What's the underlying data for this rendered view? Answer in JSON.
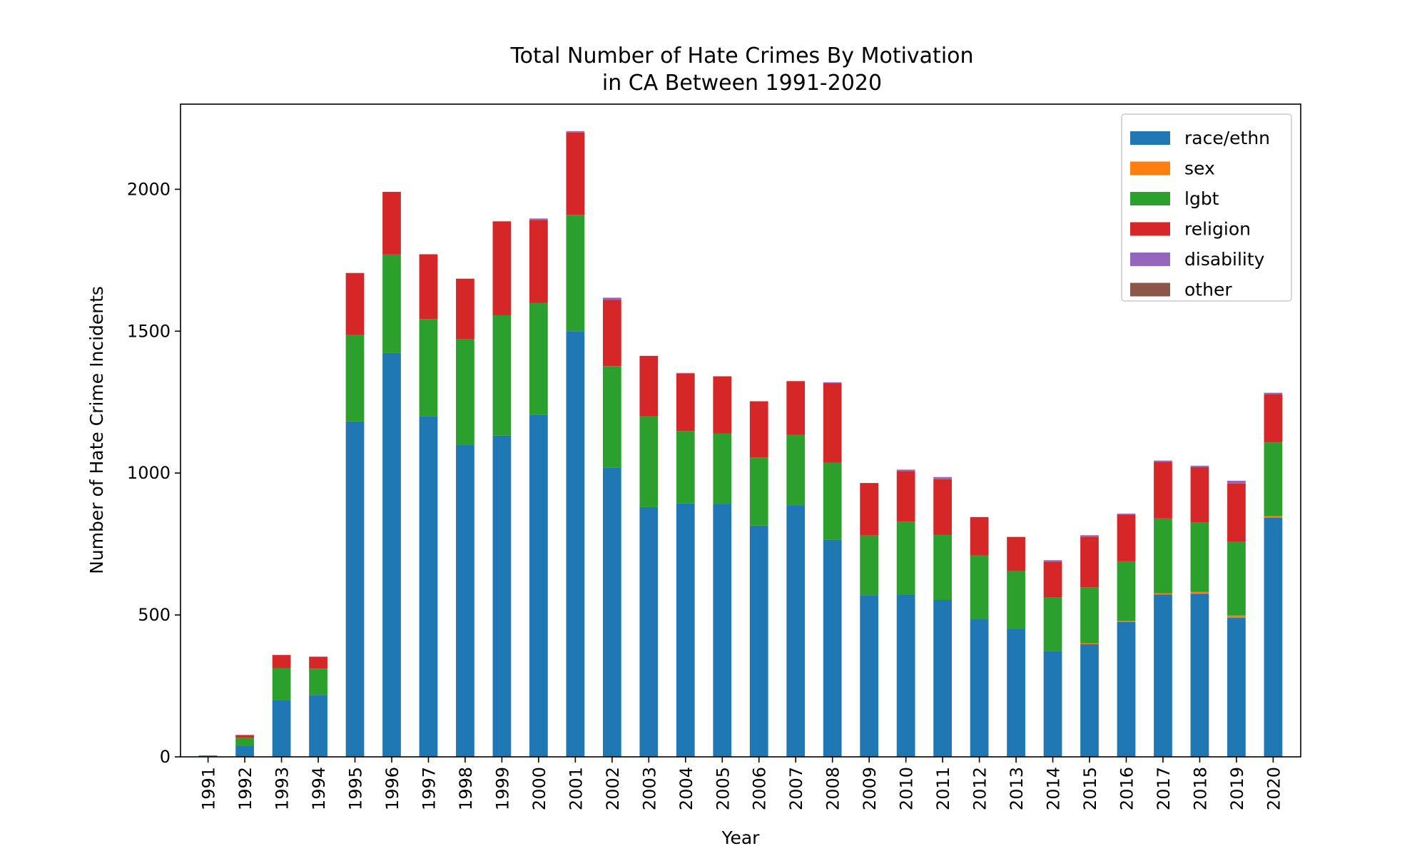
{
  "chart_data": {
    "type": "bar",
    "stacked": true,
    "title": "Total Number of Hate Crimes By Motivation\nin CA Between 1991-2020",
    "title_lines": [
      "Total Number of Hate Crimes By Motivation",
      "in CA Between 1991-2020"
    ],
    "xlabel": "Year",
    "ylabel": "Number of Hate Crime Incidents",
    "ylim": [
      0,
      2300
    ],
    "yticks": [
      0,
      500,
      1000,
      1500,
      2000
    ],
    "grid": false,
    "legend_position": "top-right",
    "categories": [
      "1991",
      "1992",
      "1993",
      "1994",
      "1995",
      "1996",
      "1997",
      "1998",
      "1999",
      "2000",
      "2001",
      "2002",
      "2003",
      "2004",
      "2005",
      "2006",
      "2007",
      "2008",
      "2009",
      "2010",
      "2011",
      "2012",
      "2013",
      "2014",
      "2015",
      "2016",
      "2017",
      "2018",
      "2019",
      "2020"
    ],
    "series": [
      {
        "name": "race/ethn",
        "color": "#1f77b4",
        "values": [
          2,
          40,
          200,
          218,
          1182,
          1423,
          1200,
          1100,
          1132,
          1205,
          1500,
          1020,
          880,
          893,
          892,
          815,
          887,
          765,
          570,
          572,
          553,
          485,
          450,
          373,
          397,
          475,
          572,
          575,
          490,
          843
        ]
      },
      {
        "name": "sex",
        "color": "#ff7f0e",
        "values": [
          0,
          0,
          0,
          0,
          0,
          0,
          0,
          0,
          0,
          0,
          0,
          0,
          0,
          0,
          0,
          0,
          0,
          0,
          0,
          0,
          0,
          0,
          0,
          0,
          3,
          4,
          4,
          6,
          8,
          5
        ]
      },
      {
        "name": "lgbt",
        "color": "#2ca02c",
        "values": [
          1,
          27,
          113,
          93,
          305,
          347,
          343,
          372,
          424,
          395,
          410,
          357,
          320,
          255,
          247,
          240,
          247,
          272,
          210,
          257,
          230,
          225,
          205,
          190,
          198,
          210,
          264,
          245,
          260,
          260
        ]
      },
      {
        "name": "religion",
        "color": "#d62728",
        "values": [
          2,
          10,
          46,
          42,
          218,
          221,
          228,
          213,
          331,
          292,
          290,
          233,
          213,
          202,
          202,
          198,
          190,
          280,
          185,
          178,
          195,
          135,
          120,
          125,
          178,
          165,
          200,
          195,
          205,
          170
        ]
      },
      {
        "name": "disability",
        "color": "#9467bd",
        "values": [
          0,
          0,
          0,
          0,
          0,
          0,
          0,
          0,
          0,
          5,
          5,
          8,
          0,
          3,
          0,
          0,
          0,
          3,
          0,
          5,
          8,
          0,
          0,
          5,
          5,
          3,
          4,
          5,
          10,
          5
        ]
      },
      {
        "name": "other",
        "color": "#8c564b",
        "values": [
          0,
          0,
          0,
          0,
          0,
          0,
          0,
          0,
          0,
          0,
          0,
          0,
          0,
          0,
          0,
          0,
          0,
          0,
          0,
          0,
          0,
          0,
          0,
          0,
          0,
          0,
          0,
          0,
          0,
          0
        ]
      }
    ]
  }
}
